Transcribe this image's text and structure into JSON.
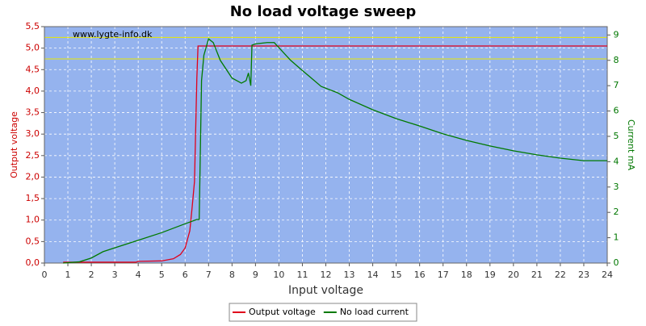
{
  "chart_data": {
    "type": "line",
    "title": "No load voltage sweep",
    "watermark": "www.lygte-info.dk",
    "xlabel": "Input voltage",
    "ylabel": "Output voltage",
    "y2label": "Current mA",
    "xlim": [
      0,
      24
    ],
    "xticks": [
      0,
      1,
      2,
      3,
      4,
      5,
      6,
      7,
      8,
      9,
      10,
      11,
      12,
      13,
      14,
      15,
      16,
      17,
      18,
      19,
      20,
      21,
      22,
      23,
      24
    ],
    "ylim": [
      0,
      5.5
    ],
    "yticks": [
      {
        "value": 0,
        "label": "0,0"
      },
      {
        "value": 0.5,
        "label": "0,5"
      },
      {
        "value": 1,
        "label": "1,0"
      },
      {
        "value": 1.5,
        "label": "1,5"
      },
      {
        "value": 2,
        "label": "2,0"
      },
      {
        "value": 2.5,
        "label": "2,5"
      },
      {
        "value": 3,
        "label": "3,0"
      },
      {
        "value": 3.5,
        "label": "3,5"
      },
      {
        "value": 4,
        "label": "4,0"
      },
      {
        "value": 4.5,
        "label": "4,5"
      },
      {
        "value": 5,
        "label": "5,0"
      },
      {
        "value": 5.5,
        "label": "5,5"
      }
    ],
    "y2lim": [
      0,
      9.33
    ],
    "y2ticks": [
      0,
      1,
      2,
      3,
      4,
      5,
      6,
      7,
      8,
      9
    ],
    "grid": true,
    "background": "#95b3ee",
    "hlines": {
      "color": "#e8e800",
      "values": [
        5.25,
        4.75
      ]
    },
    "series": [
      {
        "name": "Output voltage",
        "color": "#e0001b",
        "axis": "y",
        "x": [
          0.8,
          2,
          3,
          3.9,
          4,
          5,
          5.5,
          5.8,
          6.0,
          6.2,
          6.3,
          6.4,
          6.5,
          6.55,
          24
        ],
        "values": [
          0.02,
          0.02,
          0.02,
          0.02,
          0.04,
          0.05,
          0.1,
          0.2,
          0.35,
          0.75,
          1.3,
          1.9,
          4.3,
          5.05,
          5.05
        ]
      },
      {
        "name": "No load current",
        "color": "#007a00",
        "axis": "y2",
        "x": [
          0.8,
          1.5,
          2,
          2.5,
          3,
          4,
          5,
          6,
          6.5,
          6.6,
          6.7,
          6.8,
          7.0,
          7.2,
          7.5,
          8.0,
          8.4,
          8.6,
          8.7,
          8.8,
          8.85,
          9.0,
          9.5,
          9.8,
          10,
          10.5,
          11,
          11.8,
          12.5,
          13,
          14,
          15,
          16,
          17,
          18,
          19,
          20,
          21,
          22,
          23,
          24
        ],
        "values": [
          0,
          0.05,
          0.2,
          0.45,
          0.6,
          0.9,
          1.2,
          1.55,
          1.72,
          1.72,
          7.2,
          8.2,
          8.85,
          8.7,
          8.0,
          7.3,
          7.1,
          7.2,
          7.5,
          7.0,
          8.6,
          8.65,
          8.7,
          8.7,
          8.5,
          8.0,
          7.6,
          6.97,
          6.72,
          6.46,
          6.05,
          5.7,
          5.41,
          5.1,
          4.84,
          4.62,
          4.43,
          4.27,
          4.14,
          4.04,
          4.04
        ]
      }
    ]
  }
}
